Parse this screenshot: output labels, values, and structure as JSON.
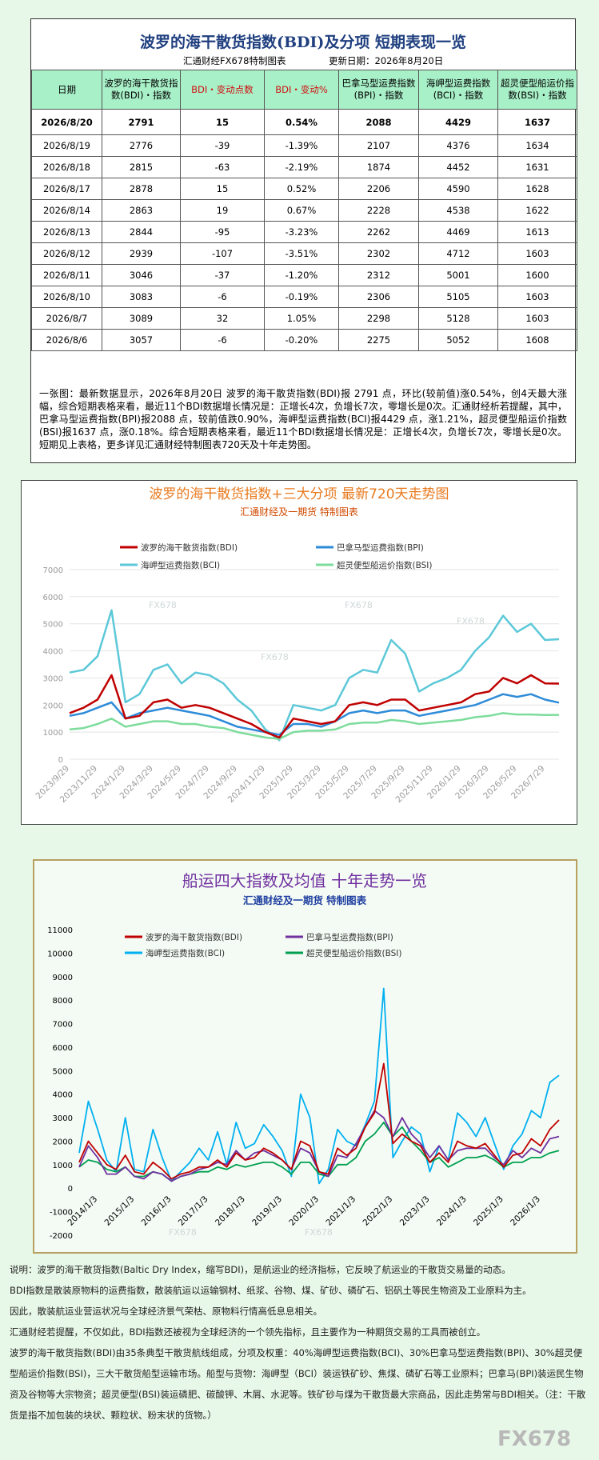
{
  "header": {
    "title": "波罗的海干散货指数(BDI)及分项  短期表现一览",
    "source": "汇通财经FX678特制图表",
    "updated": "更新日期：2026年8月20日"
  },
  "table": {
    "headers": [
      "日期",
      "波罗的海干散货指数(BDI)・指数",
      "BDI・变动点数",
      "BDI・变动%",
      "巴拿马型运费指数(BPI)・指数",
      "海岬型运费指数(BCI)・指数",
      "超灵便型船运价指数(BSI)・指数"
    ],
    "rows": [
      [
        "2026/8/20",
        "2791",
        "15",
        "0.54%",
        "2088",
        "4429",
        "1637"
      ],
      [
        "2026/8/19",
        "2776",
        "-39",
        "-1.39%",
        "2107",
        "4376",
        "1634"
      ],
      [
        "2026/8/18",
        "2815",
        "-63",
        "-2.19%",
        "1874",
        "4452",
        "1631"
      ],
      [
        "2026/8/17",
        "2878",
        "15",
        "0.52%",
        "2206",
        "4590",
        "1628"
      ],
      [
        "2026/8/14",
        "2863",
        "19",
        "0.67%",
        "2228",
        "4538",
        "1622"
      ],
      [
        "2026/8/13",
        "2844",
        "-95",
        "-3.23%",
        "2262",
        "4469",
        "1613"
      ],
      [
        "2026/8/12",
        "2939",
        "-107",
        "-3.51%",
        "2302",
        "4712",
        "1603"
      ],
      [
        "2026/8/11",
        "3046",
        "-37",
        "-1.20%",
        "2312",
        "5001",
        "1600"
      ],
      [
        "2026/8/10",
        "3083",
        "-6",
        "-0.19%",
        "2306",
        "5105",
        "1603"
      ],
      [
        "2026/8/7",
        "3089",
        "32",
        "1.05%",
        "2298",
        "5128",
        "1603"
      ],
      [
        "2026/8/6",
        "3057",
        "-6",
        "-0.20%",
        "2275",
        "5052",
        "1608"
      ]
    ]
  },
  "summary": "一张图：最新数据显示，2026年8月20日 波罗的海干散货指数(BDI)报 2791 点，环比(较前值)涨0.54%，创4天最大涨幅，综合短期表格来看，最近11个BDI数据增长情况是：正增长4次，负增长7次，零增长是0次。汇通财经析若提醒，其中，巴拿马型运费指数(BPI)报2088 点，较前值跌0.90%，海岬型运费指数(BCI)报4429 点，涨1.21%，超灵便型船运价指数(BSI)报1637 点，涨0.18%。综合短期表格来看，最近11个BDI数据增长情况是：正增长4次，负增长7次，零增长是0次。短期见上表格，更多详见汇通财经特制图表720天及十年走势图。",
  "watermark": "FX678",
  "chart_data": [
    {
      "type": "line",
      "title": "波罗的海干散货指数+三大分项  最新720天走势图",
      "subtitle": "汇通财经及一期货  特制图表",
      "grid": true,
      "categories": [
        "2023/9/29",
        null,
        "2023/11/29",
        null,
        "2024/1/29",
        null,
        "2024/3/29",
        null,
        "2024/5/29",
        null,
        "2024/7/29",
        null,
        "2024/9/29",
        null,
        "2024/11/29",
        null,
        "2025/1/29",
        null,
        "2025/3/29",
        null,
        "2025/5/29",
        null,
        "2025/7/29",
        null,
        "2025/9/29",
        null,
        "2025/11/29",
        null,
        "2026/1/29",
        null,
        "2026/3/29",
        null,
        "2026/5/29",
        null,
        "2026/7/29",
        null
      ],
      "ylim": [
        0,
        7000
      ],
      "yticks": [
        0,
        1000,
        2000,
        3000,
        4000,
        5000,
        6000,
        7000
      ],
      "series": [
        {
          "name": "波罗的海干散货指数(BDI)",
          "color": "#c00000",
          "values": [
            1700,
            1900,
            2200,
            3100,
            1500,
            1600,
            2100,
            2200,
            1900,
            2000,
            1900,
            1700,
            1500,
            1300,
            1000,
            800,
            1500,
            1400,
            1300,
            1400,
            2000,
            2100,
            2000,
            2200,
            2200,
            1800,
            1900,
            2000,
            2100,
            2400,
            2500,
            3000,
            2800,
            3100,
            2800,
            2791
          ]
        },
        {
          "name": "巴拿马型运费指数(BPI)",
          "color": "#2e8bd8",
          "values": [
            1600,
            1700,
            1900,
            2100,
            1500,
            1700,
            1800,
            1900,
            1800,
            1700,
            1600,
            1400,
            1200,
            1100,
            1000,
            900,
            1300,
            1300,
            1200,
            1400,
            1700,
            1800,
            1700,
            1800,
            1800,
            1600,
            1700,
            1800,
            1900,
            2000,
            2200,
            2400,
            2300,
            2400,
            2200,
            2088
          ]
        },
        {
          "name": "海岬型运费指数(BCI)",
          "color": "#5cc8d8",
          "values": [
            3200,
            3300,
            3800,
            5500,
            2100,
            2400,
            3300,
            3500,
            2800,
            3200,
            3100,
            2800,
            2200,
            1800,
            1100,
            700,
            2000,
            1900,
            1800,
            2000,
            3000,
            3300,
            3200,
            4400,
            3900,
            2500,
            2800,
            3000,
            3300,
            4000,
            4500,
            5300,
            4700,
            5000,
            4400,
            4429
          ]
        },
        {
          "name": "超灵便型船运价指数(BSI)",
          "color": "#7ddc9c",
          "values": [
            1100,
            1150,
            1300,
            1500,
            1200,
            1300,
            1400,
            1400,
            1300,
            1300,
            1200,
            1150,
            1000,
            900,
            800,
            750,
            1000,
            1050,
            1050,
            1100,
            1300,
            1350,
            1350,
            1450,
            1400,
            1300,
            1350,
            1400,
            1450,
            1550,
            1600,
            1700,
            1650,
            1650,
            1630,
            1637
          ]
        }
      ]
    },
    {
      "type": "line",
      "title": "船运四大指数及均值 十年走势一览",
      "subtitle": "汇通财经及一期货 特制图表",
      "grid": false,
      "categories": [
        null,
        null,
        "2014/1/3",
        null,
        null,
        null,
        "2015/1/3",
        null,
        null,
        null,
        "2016/1/3",
        null,
        null,
        null,
        "2017/1/3",
        null,
        null,
        null,
        "2018/1/3",
        null,
        null,
        null,
        "2019/1/3",
        null,
        null,
        null,
        "2020/1/3",
        null,
        null,
        null,
        "2021/1/3",
        null,
        null,
        null,
        "2022/1/3",
        null,
        null,
        null,
        "2023/1/3",
        null,
        null,
        null,
        "2024/1/3",
        null,
        null,
        null,
        "2025/1/3",
        null,
        null,
        null,
        "2026/1/3",
        null,
        null
      ],
      "ylim": [
        -2000,
        11000
      ],
      "yticks": [
        -2000,
        -1000,
        0,
        1000,
        2000,
        3000,
        4000,
        5000,
        6000,
        7000,
        8000,
        9000,
        10000,
        11000
      ],
      "series": [
        {
          "name": "波罗的海干散货指数(BDI)",
          "color": "#c00000",
          "values": [
            1100,
            2000,
            1500,
            1000,
            800,
            1400,
            700,
            600,
            1100,
            800,
            400,
            600,
            700,
            900,
            900,
            1200,
            900,
            1500,
            1200,
            1300,
            1700,
            1500,
            1200,
            800,
            2000,
            1800,
            700,
            600,
            1700,
            1400,
            1700,
            2600,
            3200,
            5300,
            1900,
            2300,
            2000,
            1800,
            1100,
            1500,
            1100,
            2000,
            1800,
            1700,
            1900,
            1400,
            900,
            1400,
            1500,
            2100,
            1800,
            2500,
            2900
          ]
        },
        {
          "name": "巴拿马型运费指数(BPI)",
          "color": "#7030a0",
          "values": [
            900,
            1800,
            1300,
            600,
            600,
            900,
            500,
            400,
            700,
            600,
            300,
            500,
            600,
            800,
            900,
            1100,
            1000,
            1600,
            1200,
            1500,
            1600,
            1400,
            1200,
            800,
            1700,
            1500,
            700,
            500,
            1400,
            1300,
            1900,
            2600,
            3300,
            3000,
            2200,
            3000,
            2300,
            1900,
            1300,
            1800,
            1200,
            1600,
            1700,
            1700,
            1700,
            1300,
            1000,
            1600,
            1300,
            1700,
            1500,
            2100,
            2200
          ]
        },
        {
          "name": "海岬型运费指数(BCI)",
          "color": "#00b0f0",
          "values": [
            1500,
            3700,
            2500,
            1200,
            700,
            3000,
            800,
            700,
            2500,
            1300,
            300,
            700,
            1100,
            1700,
            1200,
            2400,
            1000,
            2800,
            1700,
            1900,
            2700,
            2200,
            1600,
            500,
            4000,
            3000,
            200,
            800,
            2500,
            2000,
            1800,
            2700,
            3700,
            8500,
            1300,
            2000,
            2600,
            2300,
            700,
            1800,
            1200,
            3200,
            2800,
            2200,
            3000,
            1900,
            800,
            1800,
            2300,
            3300,
            3000,
            4500,
            4800
          ]
        },
        {
          "name": "超灵便型船运价指数(BSI)",
          "color": "#00a050",
          "values": [
            900,
            1200,
            1100,
            800,
            700,
            900,
            500,
            500,
            700,
            600,
            300,
            500,
            600,
            700,
            700,
            900,
            800,
            1000,
            900,
            1000,
            1100,
            1100,
            900,
            600,
            1100,
            1100,
            600,
            500,
            1000,
            1000,
            1300,
            2000,
            2300,
            2800,
            2200,
            2600,
            2000,
            1600,
            1100,
            1300,
            900,
            1100,
            1300,
            1300,
            1400,
            1200,
            900,
            1100,
            1100,
            1300,
            1300,
            1500,
            1600
          ]
        }
      ]
    }
  ],
  "notes": [
    "说明：波罗的海干散货指数(Baltic Dry Index，缩写BDI)，是航运业的经济指标，它反映了航运业的干散货交易量的动态。",
    "BDI指数是散装原物料的运费指数，散装航运以运输钢材、纸浆、谷物、煤、矿砂、磷矿石、铝矾土等民生物资及工业原料为主。",
    "因此，散装航运业营运状况与全球经济景气荣枯、原物料行情高低息息相关。",
    "汇通财经若提醒，不仅如此，BDI指数还被视为全球经济的一个领先指标，且主要作为一种期货交易的工具而被创立。",
    "波罗的海干散货指数(BDI)由35条典型干散货航线组成，分项及权重：40%海岬型运费指数(BCI)、30%巴拿马型运费指数(BPI)、30%超灵便型船运价指数(BSI)，三大干散货船型运输市场。船型与货物：海岬型（BCI）装运铁矿砂、焦煤、磷矿石等工业原料；巴拿马(BPI)装运民生物资及谷物等大宗物资；超灵便型(BSI)装运磷肥、碳酸钾、木屑、水泥等。铁矿砂与煤为干散货最大宗商品，因此走势常与BDI相关。（注：干散货是指不加包装的块状、颗粒状、粉末状的货物。）"
  ],
  "logo": "FX678"
}
